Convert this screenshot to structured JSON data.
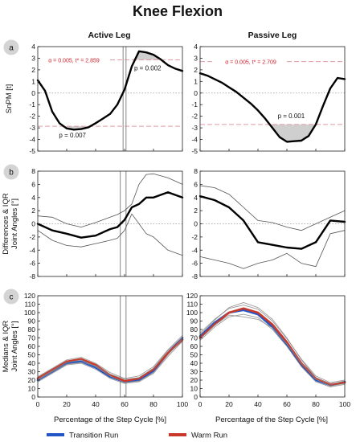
{
  "figure": {
    "title": "Knee Flexion",
    "columns": [
      "Active Leg",
      "Passive Leg"
    ],
    "xlabel": "Percentage of the Step Cycle [%]",
    "legend": [
      {
        "name": "Transition Run",
        "color": "#2457c5"
      },
      {
        "name": "Warm Run",
        "color": "#c8382b"
      }
    ],
    "colors": {
      "main": "#000000",
      "iqr": "#555555",
      "threshold": "#e39aa3",
      "threshold_text": "#d0202a",
      "shade": "#cfcfcf",
      "vline": "#9a9a9a"
    }
  },
  "chart_data": [
    {
      "id": "a-active",
      "type": "line",
      "panel": "a",
      "column": "Active Leg",
      "ylabel": "SnPM [t]",
      "xlim": [
        0,
        100
      ],
      "ylim": [
        -5,
        4
      ],
      "xticks": [
        0,
        20,
        40,
        60,
        80,
        100
      ],
      "yticks": [
        -5,
        -4,
        -3,
        -2,
        -1,
        0,
        1,
        2,
        3,
        4
      ],
      "threshold": 2.859,
      "threshold_label": "α = 0.005, t* = 2.859",
      "clusters": [
        {
          "p_label": "p = 0.007",
          "x": [
            10,
            38
          ]
        },
        {
          "p_label": "p = 0.002",
          "x": [
            66,
            86
          ]
        }
      ],
      "vlines": [
        59,
        61
      ],
      "series": [
        {
          "role": "main",
          "x": [
            0,
            5,
            10,
            15,
            20,
            25,
            30,
            35,
            40,
            45,
            50,
            55,
            60,
            65,
            70,
            75,
            80,
            85,
            90,
            95,
            100
          ],
          "y": [
            1.1,
            0.2,
            -1.6,
            -2.6,
            -3.05,
            -3.15,
            -3.1,
            -2.95,
            -2.6,
            -2.2,
            -1.8,
            -1.0,
            0.3,
            2.3,
            3.6,
            3.5,
            3.3,
            2.9,
            2.4,
            2.1,
            1.9
          ]
        }
      ]
    },
    {
      "id": "a-passive",
      "type": "line",
      "panel": "a",
      "column": "Passive Leg",
      "xlim": [
        0,
        100
      ],
      "ylim": [
        -5,
        4
      ],
      "xticks": [
        0,
        20,
        40,
        60,
        80,
        100
      ],
      "yticks": [
        -5,
        -4,
        -3,
        -2,
        -1,
        0,
        1,
        2,
        3,
        4
      ],
      "threshold": 2.709,
      "threshold_label": "α = 0.005, t* = 2.709",
      "clusters": [
        {
          "p_label": "p = 0.001",
          "x": [
            47,
            79
          ]
        }
      ],
      "vlines": [],
      "series": [
        {
          "role": "main",
          "x": [
            0,
            5,
            10,
            15,
            20,
            25,
            30,
            35,
            40,
            45,
            50,
            55,
            60,
            65,
            70,
            75,
            80,
            85,
            90,
            95,
            100
          ],
          "y": [
            1.7,
            1.5,
            1.2,
            0.9,
            0.5,
            0.1,
            -0.4,
            -0.9,
            -1.5,
            -2.2,
            -3.0,
            -3.8,
            -4.2,
            -4.15,
            -4.1,
            -3.7,
            -2.7,
            -1.1,
            0.4,
            1.3,
            1.2
          ]
        }
      ]
    },
    {
      "id": "b-active",
      "type": "line",
      "panel": "b",
      "column": "Active Leg",
      "ylabel": "Differences & IQR\nJoint Angles [°]",
      "xlim": [
        0,
        100
      ],
      "ylim": [
        -8,
        8
      ],
      "xticks": [
        0,
        20,
        40,
        60,
        80,
        100
      ],
      "yticks": [
        -8,
        -6,
        -4,
        -2,
        0,
        2,
        4,
        6,
        8
      ],
      "vlines": [
        57,
        61
      ],
      "series": [
        {
          "role": "upper",
          "x": [
            0,
            10,
            20,
            30,
            40,
            50,
            55,
            60,
            65,
            70,
            75,
            80,
            90,
            100
          ],
          "y": [
            1.2,
            1.0,
            0.0,
            -0.5,
            0.2,
            1.0,
            1.4,
            2.0,
            3.0,
            6.0,
            7.5,
            7.6,
            7.0,
            6.0
          ]
        },
        {
          "role": "main",
          "x": [
            0,
            10,
            20,
            30,
            40,
            50,
            55,
            60,
            65,
            70,
            75,
            80,
            90,
            100
          ],
          "y": [
            0.0,
            -1.0,
            -1.5,
            -2.1,
            -1.8,
            -0.8,
            -0.5,
            0.6,
            2.5,
            3.0,
            4.0,
            4.0,
            4.8,
            4.0
          ]
        },
        {
          "role": "lower",
          "x": [
            0,
            10,
            20,
            30,
            40,
            50,
            55,
            60,
            65,
            70,
            75,
            80,
            90,
            100
          ],
          "y": [
            -1.0,
            -2.5,
            -3.3,
            -3.5,
            -3.0,
            -2.5,
            -2.2,
            -1.0,
            1.5,
            0.0,
            -1.5,
            -2.0,
            -4.0,
            -4.8
          ]
        }
      ]
    },
    {
      "id": "b-passive",
      "type": "line",
      "panel": "b",
      "column": "Passive Leg",
      "xlim": [
        0,
        100
      ],
      "ylim": [
        -8,
        8
      ],
      "xticks": [
        0,
        20,
        40,
        60,
        80,
        100
      ],
      "yticks": [
        -8,
        -6,
        -4,
        -2,
        0,
        2,
        4,
        6,
        8
      ],
      "vlines": [],
      "series": [
        {
          "role": "upper",
          "x": [
            0,
            10,
            20,
            30,
            40,
            50,
            60,
            70,
            80,
            90,
            100
          ],
          "y": [
            5.8,
            5.5,
            4.5,
            2.5,
            0.5,
            0.2,
            -0.5,
            -1.0,
            0.0,
            1.0,
            2.0
          ]
        },
        {
          "role": "main",
          "x": [
            0,
            10,
            20,
            30,
            40,
            50,
            60,
            70,
            80,
            90,
            100
          ],
          "y": [
            4.2,
            3.6,
            2.5,
            0.5,
            -2.8,
            -3.2,
            -3.6,
            -3.8,
            -2.8,
            0.5,
            0.3
          ]
        },
        {
          "role": "lower",
          "x": [
            0,
            10,
            20,
            30,
            40,
            50,
            60,
            70,
            80,
            90,
            100
          ],
          "y": [
            -5.0,
            -5.5,
            -6.0,
            -6.8,
            -6.0,
            -5.5,
            -4.5,
            -6.0,
            -6.5,
            -1.5,
            -1.0
          ]
        }
      ]
    },
    {
      "id": "c-active",
      "type": "line",
      "panel": "c",
      "column": "Active Leg",
      "ylabel": "Medians & IQR\nJoint Angles [°]",
      "xlim": [
        0,
        100
      ],
      "ylim": [
        0,
        120
      ],
      "xticks": [
        0,
        20,
        40,
        60,
        80,
        100
      ],
      "yticks": [
        0,
        10,
        20,
        30,
        40,
        50,
        60,
        70,
        80,
        90,
        100,
        110,
        120
      ],
      "vlines": [
        57,
        61
      ],
      "series": [
        {
          "name": "Transition Run",
          "role": "median",
          "x": [
            0,
            10,
            20,
            30,
            40,
            50,
            60,
            70,
            80,
            90,
            100
          ],
          "y": [
            20,
            30,
            40,
            42,
            35,
            24,
            18,
            20,
            31,
            52,
            70
          ]
        },
        {
          "name": "Warm Run",
          "role": "median",
          "x": [
            0,
            10,
            20,
            30,
            40,
            50,
            60,
            70,
            80,
            90,
            100
          ],
          "y": [
            22,
            32,
            42,
            45,
            38,
            26,
            19,
            22,
            33,
            52,
            68
          ]
        },
        {
          "role": "iqr",
          "x": [
            0,
            10,
            20,
            30,
            40,
            50,
            60,
            70,
            80,
            90,
            100
          ],
          "y": [
            24,
            34,
            44,
            47,
            40,
            29,
            22,
            25,
            36,
            56,
            73
          ]
        },
        {
          "role": "iqr",
          "x": [
            0,
            10,
            20,
            30,
            40,
            50,
            60,
            70,
            80,
            90,
            100
          ],
          "y": [
            18,
            28,
            38,
            40,
            33,
            22,
            16,
            18,
            28,
            48,
            66
          ]
        },
        {
          "role": "iqr",
          "x": [
            0,
            10,
            20,
            30,
            40,
            50,
            60,
            70,
            80,
            90,
            100
          ],
          "y": [
            20,
            30,
            39,
            41,
            37,
            27,
            21,
            23,
            34,
            55,
            71
          ]
        },
        {
          "role": "iqr",
          "x": [
            0,
            10,
            20,
            30,
            40,
            50,
            60,
            70,
            80,
            90,
            100
          ],
          "y": [
            21,
            31,
            41,
            44,
            36,
            25,
            17,
            19,
            29,
            50,
            69
          ]
        }
      ]
    },
    {
      "id": "c-passive",
      "type": "line",
      "panel": "c",
      "column": "Passive Leg",
      "xlim": [
        0,
        100
      ],
      "ylim": [
        0,
        120
      ],
      "xticks": [
        0,
        20,
        40,
        60,
        80,
        100
      ],
      "yticks": [
        0,
        10,
        20,
        30,
        40,
        50,
        60,
        70,
        80,
        90,
        100,
        110,
        120
      ],
      "vlines": [],
      "series": [
        {
          "name": "Transition Run",
          "role": "median",
          "x": [
            0,
            10,
            20,
            30,
            40,
            50,
            60,
            70,
            80,
            90,
            100
          ],
          "y": [
            72,
            88,
            100,
            103,
            98,
            83,
            62,
            38,
            20,
            14,
            18
          ]
        },
        {
          "name": "Warm Run",
          "role": "median",
          "x": [
            0,
            10,
            20,
            30,
            40,
            50,
            60,
            70,
            80,
            90,
            100
          ],
          "y": [
            70,
            86,
            100,
            105,
            100,
            86,
            65,
            40,
            22,
            15,
            17
          ]
        },
        {
          "role": "iqr",
          "x": [
            0,
            10,
            20,
            30,
            40,
            50,
            60,
            70,
            80,
            90,
            100
          ],
          "y": [
            76,
            92,
            105,
            109,
            104,
            90,
            69,
            45,
            25,
            17,
            20
          ]
        },
        {
          "role": "iqr",
          "x": [
            0,
            10,
            20,
            30,
            40,
            50,
            60,
            70,
            80,
            90,
            100
          ],
          "y": [
            67,
            83,
            95,
            98,
            94,
            80,
            60,
            36,
            18,
            12,
            15
          ]
        },
        {
          "role": "iqr",
          "x": [
            0,
            10,
            20,
            30,
            40,
            50,
            60,
            70,
            80,
            90,
            100
          ],
          "y": [
            74,
            91,
            106,
            112,
            106,
            92,
            70,
            44,
            23,
            15,
            19
          ]
        },
        {
          "role": "iqr",
          "x": [
            0,
            10,
            20,
            30,
            40,
            50,
            60,
            70,
            80,
            90,
            100
          ],
          "y": [
            69,
            85,
            97,
            95,
            92,
            82,
            63,
            40,
            21,
            13,
            16
          ]
        }
      ]
    }
  ]
}
